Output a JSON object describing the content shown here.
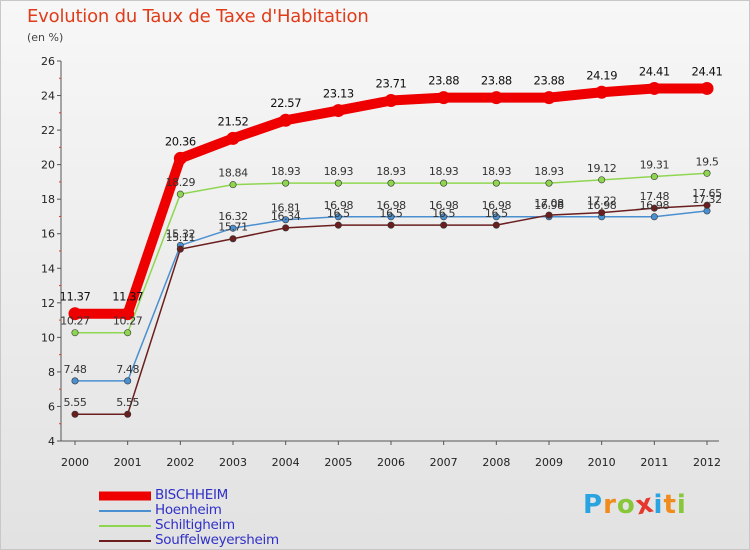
{
  "chart_data": {
    "type": "line",
    "title": "Evolution du Taux de Taxe d'Habitation",
    "unit_label": "(en %)",
    "xlabel": "",
    "ylabel": "",
    "ylim": [
      4,
      26
    ],
    "yticks": [
      4,
      6,
      8,
      10,
      12,
      14,
      16,
      18,
      20,
      22,
      24,
      26
    ],
    "grid": false,
    "legend_position": "bottom-left",
    "categories": [
      "2000",
      "2001",
      "2002",
      "2003",
      "2004",
      "2005",
      "2006",
      "2007",
      "2008",
      "2009",
      "2010",
      "2011",
      "2012"
    ],
    "series": [
      {
        "name": "BISCHHEIM",
        "color": "#ee0000",
        "emphasis": true,
        "values": [
          11.37,
          11.37,
          20.36,
          21.52,
          22.57,
          23.13,
          23.71,
          23.88,
          23.88,
          23.88,
          24.19,
          24.41,
          24.41
        ],
        "labels": [
          "11.37",
          "11.37",
          "20.36",
          "21.52",
          "22.57",
          "23.13",
          "23.71",
          "23.88",
          "23.88",
          "23.88",
          "24.19",
          "24.41",
          "24.41"
        ]
      },
      {
        "name": "Hoenheim",
        "color": "#4a8fd0",
        "values": [
          7.48,
          7.48,
          15.32,
          16.32,
          16.81,
          16.98,
          16.98,
          16.98,
          16.98,
          16.98,
          16.98,
          16.98,
          17.32
        ],
        "labels": [
          "7.48",
          "7.48",
          "15.32",
          "16.32",
          "16.81",
          "16.98",
          "16.98",
          "16.98",
          "16.98",
          "16.98",
          "16.98",
          "16.98",
          "17.32"
        ]
      },
      {
        "name": "Schiltigheim",
        "color": "#8fd650",
        "values": [
          10.27,
          10.27,
          18.29,
          18.84,
          18.93,
          18.93,
          18.93,
          18.93,
          18.93,
          18.93,
          19.12,
          19.31,
          19.5
        ],
        "labels": [
          "10.27",
          "10.27",
          "18.29",
          "18.84",
          "18.93",
          "18.93",
          "18.93",
          "18.93",
          "18.93",
          "18.93",
          "19.12",
          "19.31",
          "19.5"
        ]
      },
      {
        "name": "Souffelweyersheim",
        "color": "#6b1e1e",
        "values": [
          5.55,
          5.55,
          15.11,
          15.71,
          16.34,
          16.5,
          16.5,
          16.5,
          16.5,
          17.08,
          17.22,
          17.48,
          17.65
        ],
        "labels": [
          "5.55",
          "5.55",
          "15.11",
          "15.71",
          "16.34",
          "16.5",
          "16.5",
          "16.5",
          "16.5",
          "17.08",
          "17.22",
          "17.48",
          "17.65"
        ]
      }
    ]
  },
  "logo": {
    "text": "Proxiti",
    "letters": [
      "P",
      "r",
      "o",
      "x",
      "i",
      "t",
      "i"
    ],
    "colors": [
      "#2aa4e0",
      "#f08c1e",
      "#88c63a",
      "#e6362d",
      "#2aa4e0",
      "#f08c1e",
      "#88c63a"
    ]
  }
}
